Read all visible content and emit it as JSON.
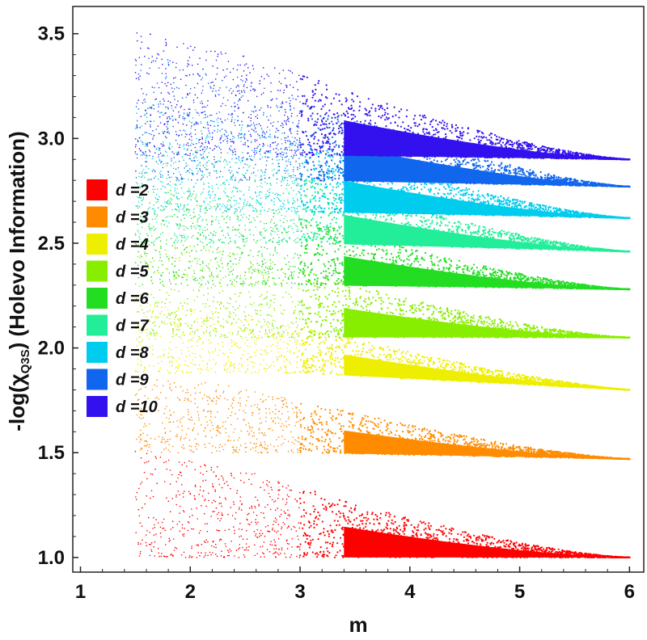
{
  "chart_data": {
    "type": "scatter",
    "xlabel": "m",
    "ylabel": "-log(χ",
    "ylabel_sub": "Q3S",
    "ylabel_rest": ") (Holevo Information)",
    "xlim": [
      0.93,
      6.13
    ],
    "ylim": [
      0.93,
      3.63
    ],
    "x_ticks": [
      1,
      2,
      3,
      4,
      5,
      6
    ],
    "x_tick_labels": [
      "1",
      "2",
      "3",
      "4",
      "5",
      "6"
    ],
    "y_ticks": [
      1.0,
      1.5,
      2.0,
      2.5,
      3.0,
      3.5
    ],
    "y_tick_labels": [
      "1.0",
      "1.5",
      "2.0",
      "2.5",
      "3.0",
      "3.5"
    ],
    "grid": false,
    "legend_position": "left",
    "series": [
      {
        "name": "d =2",
        "color": "#ff0000",
        "floor": 1.0,
        "floor_at_m6": 1.0,
        "peak": 1.4,
        "peak_m": 2.6
      },
      {
        "name": "d =3",
        "color": "#ff8c00",
        "floor": 1.5,
        "floor_at_m6": 1.47,
        "peak": 1.8,
        "peak_m": 2.6
      },
      {
        "name": "d =4",
        "color": "#eeee00",
        "floor": 1.88,
        "floor_at_m6": 1.8,
        "peak": 2.15,
        "peak_m": 2.6
      },
      {
        "name": "d =5",
        "color": "#88ee00",
        "floor": 2.05,
        "floor_at_m6": 2.05,
        "peak": 2.45,
        "peak_m": 2.5
      },
      {
        "name": "d =6",
        "color": "#22dd22",
        "floor": 2.3,
        "floor_at_m6": 2.28,
        "peak": 2.7,
        "peak_m": 2.5
      },
      {
        "name": "d =7",
        "color": "#22ee99",
        "floor": 2.5,
        "floor_at_m6": 2.46,
        "peak": 2.9,
        "peak_m": 2.5
      },
      {
        "name": "d =8",
        "color": "#00ccee",
        "floor": 2.65,
        "floor_at_m6": 2.62,
        "peak": 3.1,
        "peak_m": 2.4
      },
      {
        "name": "d =9",
        "color": "#1166ee",
        "floor": 2.8,
        "floor_at_m6": 2.77,
        "peak": 3.3,
        "peak_m": 2.4
      },
      {
        "name": "d =10",
        "color": "#3311ee",
        "floor": 2.92,
        "floor_at_m6": 2.9,
        "peak": 3.4,
        "peak_m": 2.5
      }
    ]
  }
}
